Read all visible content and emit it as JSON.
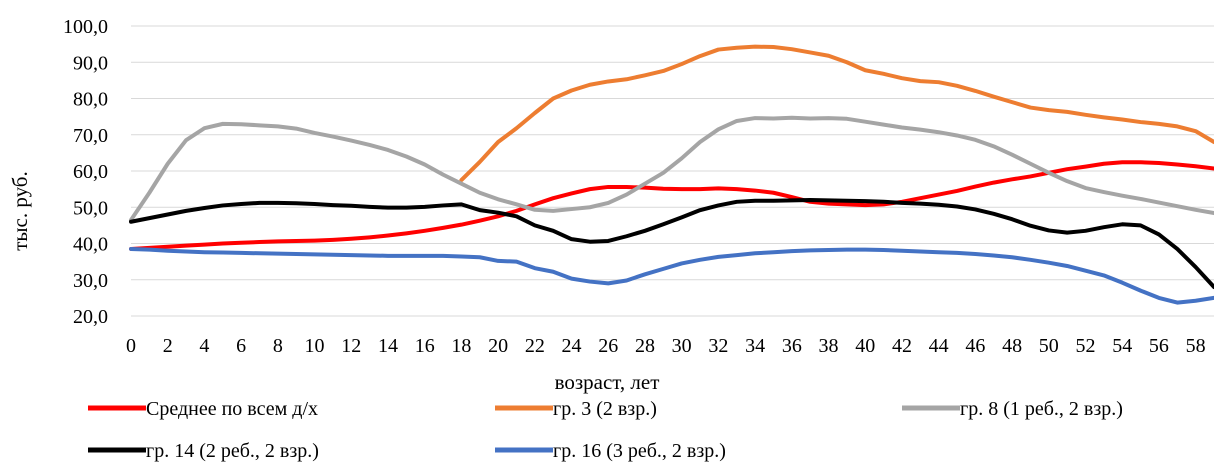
{
  "chart_data": {
    "type": "line",
    "xlabel": "возраст, лет",
    "ylabel": "тыс. руб.",
    "ylim": [
      20,
      100
    ],
    "yticks": [
      20,
      30,
      40,
      50,
      60,
      70,
      80,
      90,
      100
    ],
    "ytick_labels": [
      "20,0",
      "30,0",
      "40,0",
      "50,0",
      "60,0",
      "70,0",
      "80,0",
      "90,0",
      "100,0"
    ],
    "xlim": [
      0,
      59
    ],
    "xticks": [
      0,
      2,
      4,
      6,
      8,
      10,
      12,
      14,
      16,
      18,
      20,
      22,
      24,
      26,
      28,
      30,
      32,
      34,
      36,
      38,
      40,
      42,
      44,
      46,
      48,
      50,
      52,
      54,
      56,
      58
    ],
    "xtick_labels": [
      "0",
      "2",
      "4",
      "6",
      "8",
      "10",
      "12",
      "14",
      "16",
      "18",
      "20",
      "22",
      "24",
      "26",
      "28",
      "30",
      "32",
      "34",
      "36",
      "38",
      "40",
      "42",
      "44",
      "46",
      "48",
      "50",
      "52",
      "54",
      "56",
      "58"
    ],
    "grid": "horizontal",
    "legend_position": "bottom",
    "series": [
      {
        "name": "Среднее по всем д/х",
        "color": "#ff0000",
        "values": [
          38.5,
          38.8,
          39.1,
          39.4,
          39.7,
          40.0,
          40.2,
          40.4,
          40.6,
          40.7,
          40.8,
          41.0,
          41.3,
          41.7,
          42.2,
          42.8,
          43.5,
          44.3,
          45.2,
          46.3,
          47.5,
          49.0,
          50.8,
          52.5,
          53.8,
          55.0,
          55.6,
          55.6,
          55.4,
          55.1,
          55.0,
          55.0,
          55.2,
          55.0,
          54.6,
          54.0,
          52.8,
          51.5,
          51.0,
          50.8,
          50.6,
          50.8,
          51.5,
          52.5,
          53.5,
          54.5,
          55.7,
          56.8,
          57.7,
          58.5,
          59.5,
          60.5,
          61.2,
          62.0,
          62.4,
          62.4,
          62.2,
          61.8,
          61.3,
          60.7
        ]
      },
      {
        "name": "гр. 3 (2 взр.)",
        "color": "#ed7d31",
        "values": [
          null,
          null,
          null,
          null,
          null,
          null,
          null,
          null,
          null,
          null,
          null,
          null,
          null,
          null,
          null,
          null,
          null,
          null,
          57.5,
          62.5,
          68.0,
          71.8,
          76.0,
          80.0,
          82.2,
          83.8,
          84.7,
          85.3,
          86.4,
          87.6,
          89.5,
          91.7,
          93.5,
          94.0,
          94.3,
          94.2,
          93.6,
          92.7,
          91.8,
          90.0,
          87.8,
          86.8,
          85.6,
          84.8,
          84.5,
          83.5,
          82.1,
          80.5,
          79.0,
          77.5,
          76.8,
          76.3,
          75.5,
          74.8,
          74.2,
          73.5,
          73.0,
          72.3,
          71.0,
          68.0
        ]
      },
      {
        "name": "гр. 8 (1 реб., 2 взр.)",
        "color": "#a5a5a5",
        "values": [
          46.5,
          54.0,
          62.0,
          68.5,
          71.8,
          73.0,
          72.9,
          72.6,
          72.3,
          71.7,
          70.5,
          69.5,
          68.4,
          67.2,
          65.8,
          64.0,
          61.8,
          59.0,
          56.5,
          54.0,
          52.2,
          50.8,
          49.3,
          49.0,
          49.5,
          50.0,
          51.2,
          53.5,
          56.5,
          59.5,
          63.5,
          68.0,
          71.5,
          73.8,
          74.6,
          74.5,
          74.7,
          74.5,
          74.6,
          74.4,
          73.6,
          72.8,
          72.0,
          71.4,
          70.7,
          69.8,
          68.6,
          66.8,
          64.5,
          62.0,
          59.5,
          57.2,
          55.3,
          54.2,
          53.2,
          52.3,
          51.3,
          50.3,
          49.3,
          48.4
        ]
      },
      {
        "name": "гр. 14 (2 реб., 2 взр.)",
        "color": "#000000",
        "values": [
          46.0,
          47.0,
          48.0,
          49.0,
          49.8,
          50.5,
          50.9,
          51.2,
          51.2,
          51.1,
          50.9,
          50.6,
          50.4,
          50.1,
          49.9,
          49.9,
          50.1,
          50.5,
          50.8,
          49.2,
          48.5,
          47.5,
          45.0,
          43.5,
          41.2,
          40.5,
          40.7,
          42.0,
          43.5,
          45.3,
          47.2,
          49.2,
          50.5,
          51.5,
          51.8,
          51.8,
          51.9,
          52.0,
          51.9,
          51.8,
          51.7,
          51.5,
          51.2,
          51.0,
          50.7,
          50.2,
          49.4,
          48.2,
          46.7,
          44.9,
          43.6,
          43.0,
          43.5,
          44.5,
          45.3,
          45.0,
          42.5,
          38.5,
          33.5,
          28.0
        ]
      },
      {
        "name": "гр. 16 (3 реб., 2 взр.)",
        "color": "#4472c4",
        "values": [
          38.5,
          38.3,
          38.0,
          37.8,
          37.6,
          37.5,
          37.4,
          37.3,
          37.2,
          37.1,
          37.0,
          36.9,
          36.8,
          36.7,
          36.6,
          36.6,
          36.6,
          36.6,
          36.4,
          36.2,
          35.2,
          35.0,
          33.2,
          32.2,
          30.3,
          29.5,
          29.0,
          29.8,
          31.5,
          33.0,
          34.5,
          35.5,
          36.3,
          36.8,
          37.3,
          37.6,
          37.9,
          38.1,
          38.2,
          38.3,
          38.3,
          38.2,
          38.0,
          37.8,
          37.6,
          37.4,
          37.1,
          36.7,
          36.2,
          35.5,
          34.7,
          33.8,
          32.5,
          31.2,
          29.2,
          27.0,
          25.0,
          23.7,
          24.2,
          25.0
        ]
      }
    ]
  }
}
